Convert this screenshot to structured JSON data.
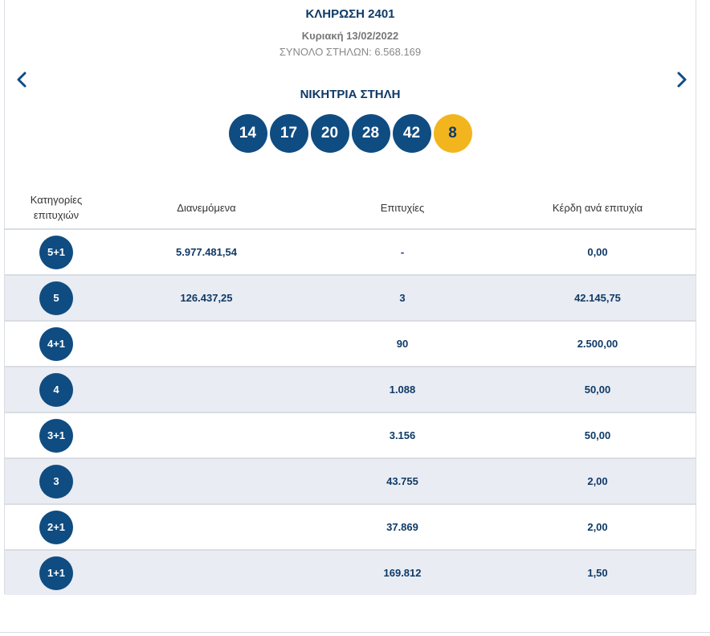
{
  "draw": {
    "title": "ΚΛΗΡΩΣΗ 2401",
    "date": "Κυριακή 13/02/2022",
    "total_columns": "ΣΥΝΟΛΟ ΣΤΗΛΩΝ: 6.568.169",
    "winning_label": "ΝΙΚΗΤΡΙΑ ΣΤΗΛΗ",
    "numbers": [
      "14",
      "17",
      "20",
      "28",
      "42"
    ],
    "joker": "8"
  },
  "nav": {
    "prev_icon": "chevron-left-icon",
    "next_icon": "chevron-right-icon"
  },
  "table": {
    "headers": {
      "category": "Κατηγορίες επιτυχιών",
      "distributed": "Διανεμόμενα",
      "winners": "Επιτυχίες",
      "prize": "Κέρδη ανά επιτυχία"
    },
    "rows": [
      {
        "category": "5+1",
        "distributed": "5.977.481,54",
        "winners": "-",
        "prize": "0,00"
      },
      {
        "category": "5",
        "distributed": "126.437,25",
        "winners": "3",
        "prize": "42.145,75"
      },
      {
        "category": "4+1",
        "distributed": "",
        "winners": "90",
        "prize": "2.500,00"
      },
      {
        "category": "4",
        "distributed": "",
        "winners": "1.088",
        "prize": "50,00"
      },
      {
        "category": "3+1",
        "distributed": "",
        "winners": "3.156",
        "prize": "50,00"
      },
      {
        "category": "3",
        "distributed": "",
        "winners": "43.755",
        "prize": "2,00"
      },
      {
        "category": "2+1",
        "distributed": "",
        "winners": "37.869",
        "prize": "2,00"
      },
      {
        "category": "1+1",
        "distributed": "",
        "winners": "169.812",
        "prize": "1,50"
      }
    ]
  },
  "colors": {
    "primary": "#0f4c81",
    "joker": "#f2b51e",
    "alt_row": "#e9ecf3"
  }
}
